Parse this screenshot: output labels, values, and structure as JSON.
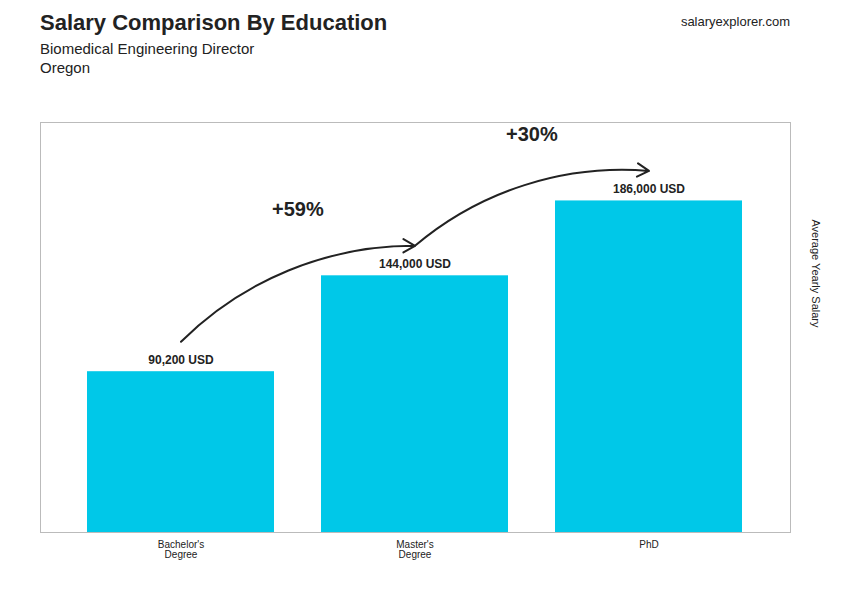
{
  "chart_data": {
    "type": "bar",
    "title": "Salary Comparison By Education",
    "subtitle": [
      "Biomedical Engineering Director",
      "Oregon"
    ],
    "ylabel": "Average Yearly Salary",
    "categories": [
      "Bachelor's\nDegree",
      "Master's\nDegree",
      "PhD"
    ],
    "values": [
      90200,
      144000,
      186000
    ],
    "value_labels": [
      "90,200 USD",
      "144,000 USD",
      "186,000 USD"
    ],
    "data_labels": true,
    "color": "#00C8E8",
    "ylim": [
      0,
      230000
    ],
    "tick_labels": "x",
    "annotations": [
      {
        "text": "+59%",
        "from": "Bachelor's\nDegree",
        "to": "Master's\nDegree"
      },
      {
        "text": "+30%",
        "from": "Master's\nDegree",
        "to": "PhD"
      },
      {
        "text": "salaryexplorer.com"
      }
    ]
  }
}
